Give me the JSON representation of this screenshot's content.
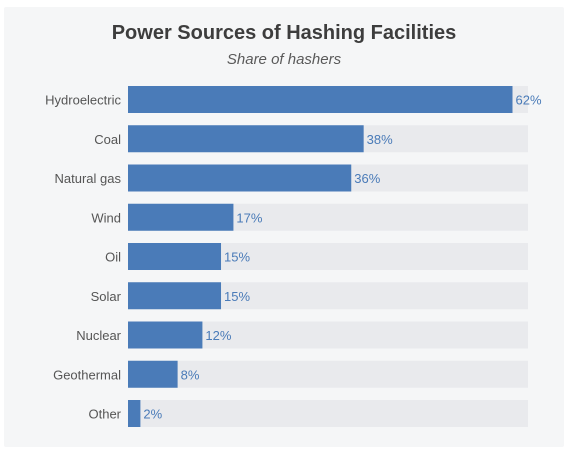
{
  "chart_data": {
    "type": "bar",
    "orientation": "horizontal",
    "title": "Power Sources of Hashing Facilities",
    "subtitle": "Share of hashers",
    "categories": [
      "Hydroelectric",
      "Coal",
      "Natural gas",
      "Wind",
      "Oil",
      "Solar",
      "Nuclear",
      "Geothermal",
      "Other"
    ],
    "values": [
      62,
      38,
      36,
      17,
      15,
      15,
      12,
      8,
      2
    ],
    "value_suffix": "%",
    "xlim": [
      0,
      100
    ],
    "grid": false,
    "legend": "none",
    "colors": {
      "bar": "#4a7bb8",
      "track": "#e9eaed",
      "label": "#555555",
      "value": "#4a7bb8"
    }
  }
}
